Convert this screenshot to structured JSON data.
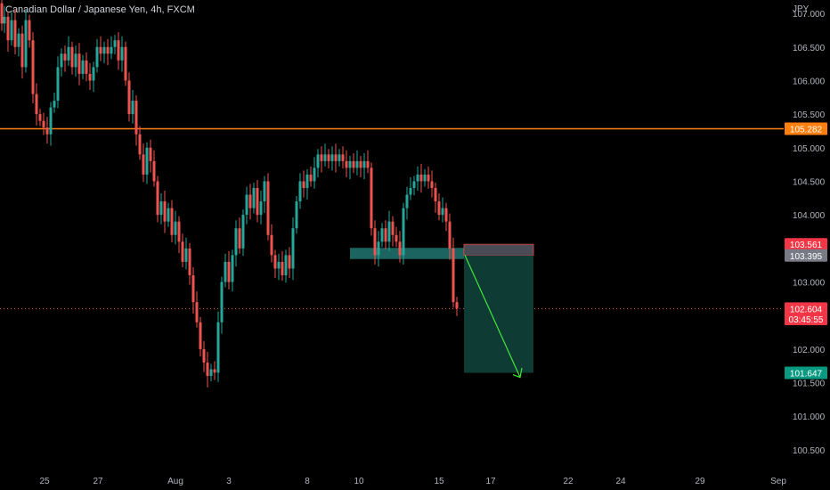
{
  "header": {
    "title": "Canadian Dollar / Japanese Yen, 4h, FXCM",
    "currency": "JPY"
  },
  "colors": {
    "background": "#000000",
    "up": "#26a69a",
    "down": "#ef5350",
    "resistance": "#ff7f0e",
    "target_box": "#1b5e4b",
    "stop_box": "#5d606b",
    "arrow": "#44e63c"
  },
  "chart_data": {
    "type": "candlestick",
    "title": "Canadian Dollar / Japanese Yen, 4h, FXCM",
    "y_unit": "JPY",
    "ylim": [
      100.3,
      107.2
    ],
    "y_ticks": [
      "107.000",
      "106.500",
      "106.000",
      "105.500",
      "105.000",
      "104.500",
      "104.000",
      "103.000",
      "102.000",
      "101.500",
      "101.000",
      "100.500"
    ],
    "x_ticks": [
      "25",
      "27",
      "Aug",
      "3",
      "8",
      "10",
      "15",
      "17",
      "22",
      "24",
      "29",
      "Sep"
    ],
    "price_labels": [
      {
        "label": "105.282",
        "value": 105.282,
        "color": "#ff7f0e"
      },
      {
        "label": "103.561",
        "value": 103.561,
        "color": "#f23645"
      },
      {
        "label": "103.395",
        "value": 103.395,
        "color": "#787b86"
      },
      {
        "label": "102.604",
        "value": 102.604,
        "color": "#f23645"
      },
      {
        "label": "03:45:55",
        "value": 102.45,
        "color": "#f23645"
      },
      {
        "label": "101.647",
        "value": 101.647,
        "color": "#089981"
      }
    ],
    "horizontal_line": {
      "value": 105.282
    },
    "current_price_line": {
      "value": 102.604
    },
    "entry_zone": {
      "top": 103.561,
      "bottom": 103.395
    },
    "target_zone": {
      "top": 103.395,
      "bottom": 101.647
    },
    "close_path": [
      [
        0,
        107.15
      ],
      [
        3,
        106.85
      ],
      [
        6,
        106.95
      ],
      [
        10,
        106.6
      ],
      [
        14,
        106.9
      ],
      [
        18,
        106.5
      ],
      [
        22,
        106.7
      ],
      [
        26,
        106.2
      ],
      [
        30,
        106.9
      ],
      [
        34,
        106.6
      ],
      [
        38,
        105.8
      ],
      [
        42,
        105.5
      ],
      [
        46,
        105.4
      ],
      [
        50,
        105.3
      ],
      [
        54,
        105.2
      ],
      [
        58,
        105.6
      ],
      [
        62,
        105.7
      ],
      [
        66,
        106.2
      ],
      [
        70,
        106.4
      ],
      [
        74,
        106.3
      ],
      [
        78,
        106.5
      ],
      [
        82,
        106.2
      ],
      [
        86,
        106.4
      ],
      [
        90,
        106.1
      ],
      [
        94,
        106.3
      ],
      [
        98,
        106.1
      ],
      [
        102,
        106.0
      ],
      [
        106,
        106.2
      ],
      [
        110,
        106.5
      ],
      [
        114,
        106.4
      ],
      [
        118,
        106.5
      ],
      [
        122,
        106.4
      ],
      [
        126,
        106.5
      ],
      [
        130,
        106.6
      ],
      [
        134,
        106.3
      ],
      [
        138,
        106.5
      ],
      [
        142,
        106.0
      ],
      [
        146,
        105.5
      ],
      [
        150,
        105.7
      ],
      [
        154,
        105.2
      ],
      [
        158,
        104.9
      ],
      [
        162,
        104.6
      ],
      [
        166,
        105.0
      ],
      [
        170,
        104.8
      ],
      [
        174,
        104.5
      ],
      [
        178,
        104.0
      ],
      [
        182,
        104.2
      ],
      [
        186,
        103.9
      ],
      [
        190,
        104.1
      ],
      [
        194,
        103.7
      ],
      [
        198,
        103.9
      ],
      [
        202,
        103.6
      ],
      [
        206,
        103.3
      ],
      [
        210,
        103.5
      ],
      [
        214,
        103.1
      ],
      [
        218,
        102.7
      ],
      [
        222,
        102.4
      ],
      [
        226,
        102.0
      ],
      [
        230,
        101.8
      ],
      [
        234,
        101.6
      ],
      [
        238,
        101.7
      ],
      [
        242,
        101.65
      ],
      [
        246,
        102.4
      ],
      [
        250,
        103.0
      ],
      [
        254,
        103.3
      ],
      [
        258,
        103.0
      ],
      [
        262,
        103.4
      ],
      [
        266,
        103.8
      ],
      [
        270,
        103.5
      ],
      [
        274,
        104.0
      ],
      [
        278,
        104.3
      ],
      [
        282,
        104.1
      ],
      [
        286,
        104.4
      ],
      [
        290,
        104.0
      ],
      [
        294,
        104.2
      ],
      [
        298,
        104.5
      ],
      [
        302,
        103.7
      ],
      [
        306,
        103.4
      ],
      [
        310,
        103.2
      ],
      [
        314,
        103.3
      ],
      [
        318,
        103.1
      ],
      [
        322,
        103.4
      ],
      [
        326,
        103.2
      ],
      [
        330,
        103.8
      ],
      [
        334,
        104.2
      ],
      [
        338,
        104.5
      ],
      [
        342,
        104.4
      ],
      [
        346,
        104.6
      ],
      [
        350,
        104.5
      ],
      [
        354,
        104.7
      ],
      [
        358,
        104.9
      ],
      [
        362,
        104.8
      ],
      [
        366,
        104.9
      ],
      [
        370,
        104.8
      ],
      [
        374,
        104.9
      ],
      [
        378,
        104.8
      ],
      [
        382,
        104.9
      ],
      [
        386,
        104.8
      ],
      [
        390,
        104.7
      ],
      [
        394,
        104.8
      ],
      [
        398,
        104.7
      ],
      [
        402,
        104.8
      ],
      [
        406,
        104.7
      ],
      [
        410,
        104.8
      ],
      [
        414,
        104.7
      ],
      [
        418,
        103.8
      ],
      [
        422,
        103.4
      ],
      [
        426,
        103.6
      ],
      [
        430,
        103.8
      ],
      [
        434,
        103.6
      ],
      [
        438,
        103.9
      ],
      [
        442,
        103.7
      ],
      [
        446,
        103.6
      ],
      [
        450,
        103.4
      ],
      [
        454,
        104.1
      ],
      [
        458,
        104.3
      ],
      [
        462,
        104.4
      ],
      [
        466,
        104.5
      ],
      [
        470,
        104.6
      ],
      [
        474,
        104.5
      ],
      [
        478,
        104.6
      ],
      [
        482,
        104.5
      ],
      [
        486,
        104.4
      ],
      [
        490,
        104.2
      ],
      [
        494,
        104.0
      ],
      [
        498,
        104.1
      ],
      [
        502,
        103.9
      ],
      [
        506,
        103.5
      ],
      [
        510,
        102.7
      ],
      [
        514,
        102.604
      ]
    ]
  }
}
